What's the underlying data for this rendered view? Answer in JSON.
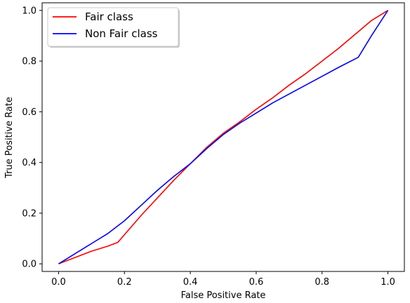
{
  "chart_data": {
    "type": "line",
    "title": "",
    "xlabel": "False Positive Rate",
    "ylabel": "True Positive Rate",
    "xlim": [
      -0.05,
      1.05
    ],
    "ylim": [
      -0.03,
      1.03
    ],
    "xticks": [
      "0.0",
      "0.2",
      "0.4",
      "0.6",
      "0.8",
      "1.0"
    ],
    "yticks": [
      "0.0",
      "0.2",
      "0.4",
      "0.6",
      "0.8",
      "1.0"
    ],
    "grid": false,
    "legend_position": "top-left",
    "series": [
      {
        "name": "Fair class",
        "color": "#ff0000",
        "x": [
          0.0,
          0.05,
          0.1,
          0.15,
          0.18,
          0.2,
          0.25,
          0.3,
          0.35,
          0.4,
          0.45,
          0.5,
          0.55,
          0.6,
          0.65,
          0.7,
          0.75,
          0.8,
          0.85,
          0.9,
          0.95,
          1.0
        ],
        "y": [
          0.0,
          0.025,
          0.05,
          0.07,
          0.085,
          0.115,
          0.19,
          0.26,
          0.33,
          0.395,
          0.46,
          0.515,
          0.56,
          0.61,
          0.655,
          0.705,
          0.75,
          0.8,
          0.85,
          0.905,
          0.96,
          1.0
        ]
      },
      {
        "name": "Non Fair class",
        "color": "#0000ff",
        "x": [
          0.0,
          0.05,
          0.1,
          0.15,
          0.2,
          0.25,
          0.3,
          0.35,
          0.4,
          0.45,
          0.5,
          0.55,
          0.6,
          0.65,
          0.7,
          0.75,
          0.8,
          0.85,
          0.91,
          0.95,
          1.0
        ],
        "y": [
          0.0,
          0.04,
          0.08,
          0.12,
          0.17,
          0.23,
          0.29,
          0.345,
          0.395,
          0.455,
          0.51,
          0.555,
          0.595,
          0.635,
          0.67,
          0.705,
          0.74,
          0.775,
          0.815,
          0.9,
          1.0
        ]
      }
    ]
  }
}
